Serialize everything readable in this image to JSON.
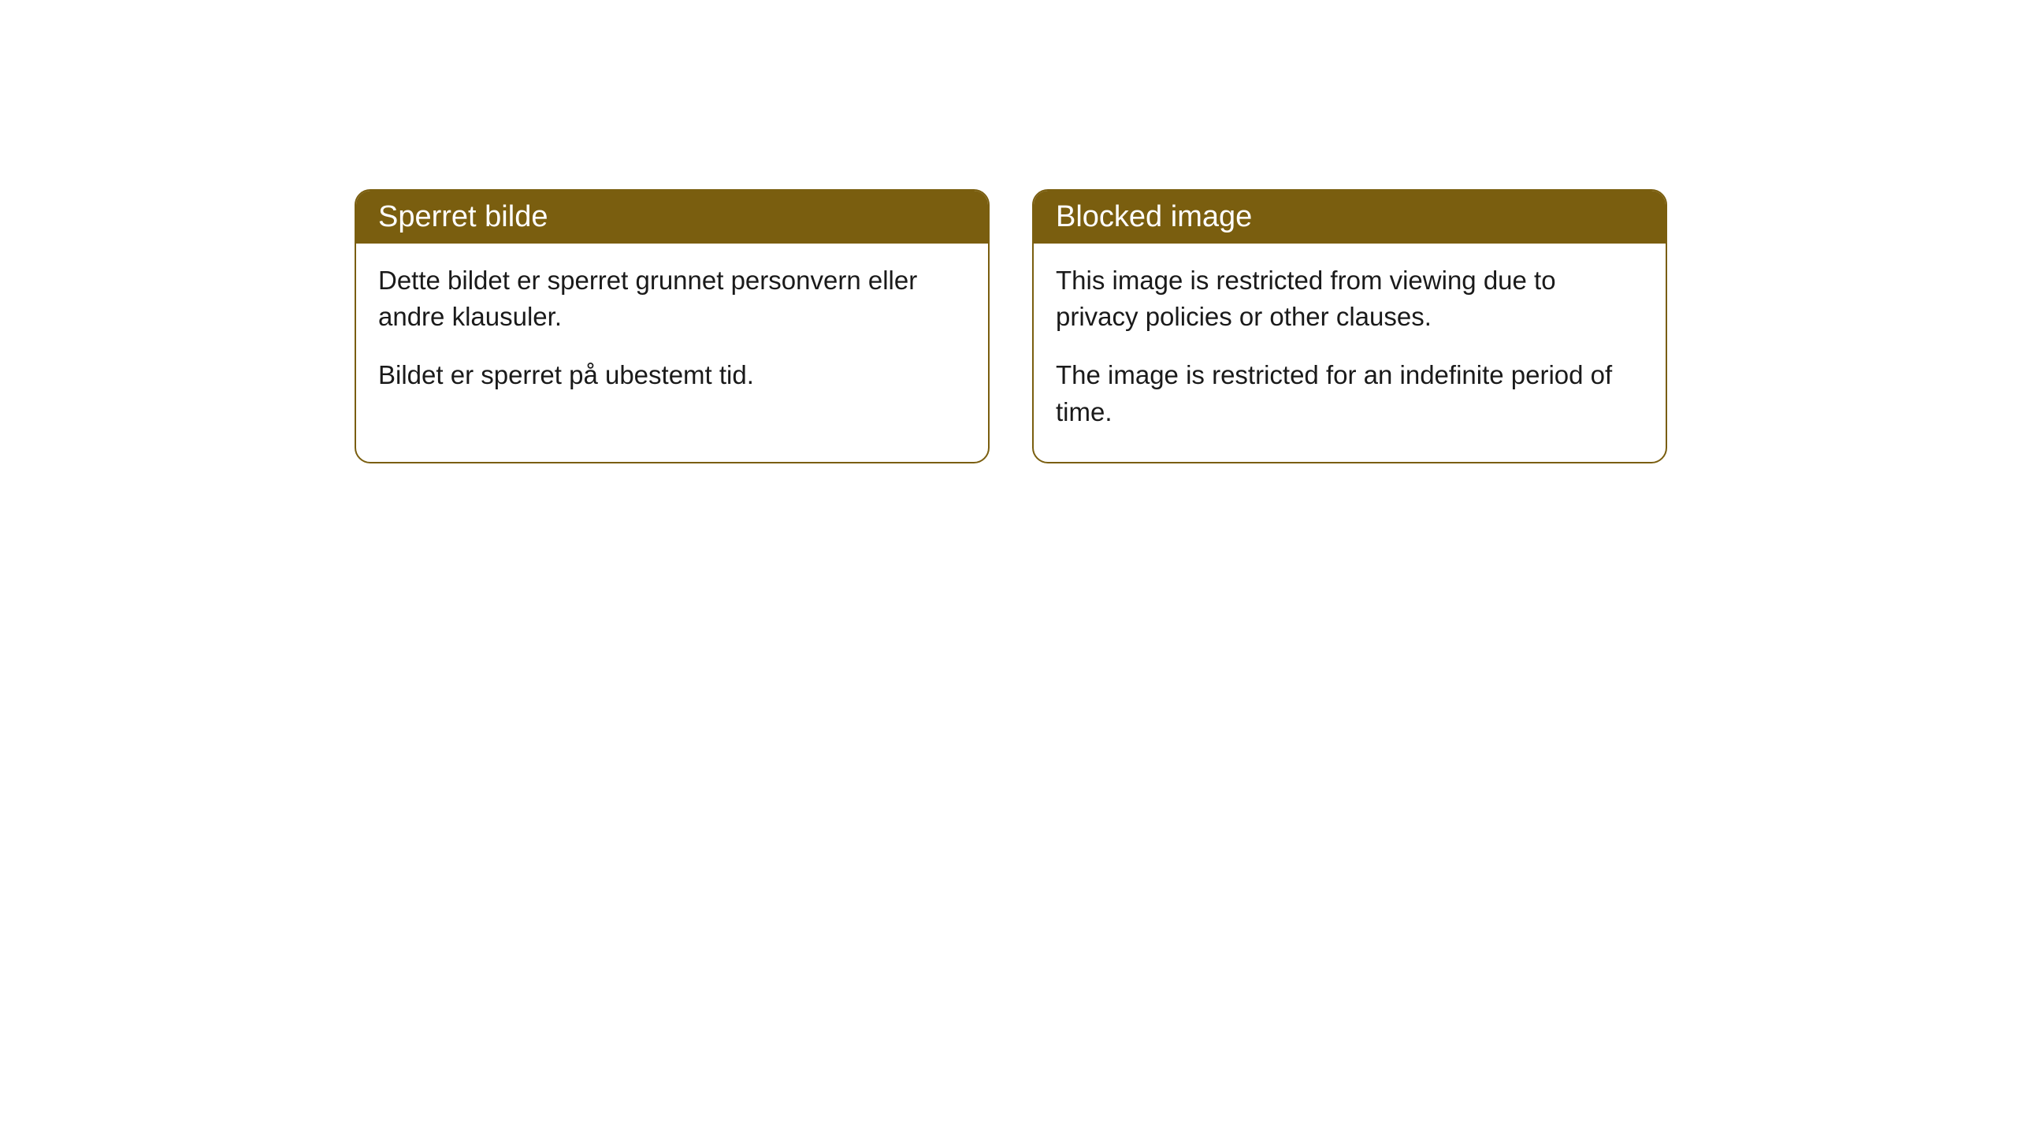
{
  "cards": [
    {
      "title": "Sperret bilde",
      "paragraph1": "Dette bildet er sperret grunnet personvern eller andre klausuler.",
      "paragraph2": "Bildet er sperret på ubestemt tid."
    },
    {
      "title": "Blocked image",
      "paragraph1": "This image is restricted from viewing due to privacy policies or other clauses.",
      "paragraph2": "The image is restricted for an indefinite period of time."
    }
  ],
  "style": {
    "header_background": "#7a5e0f",
    "header_text_color": "#ffffff",
    "border_color": "#7a5e0f",
    "body_text_color": "#1a1a1a",
    "background_color": "#ffffff",
    "border_radius": 20,
    "title_fontsize": 38,
    "body_fontsize": 33
  }
}
